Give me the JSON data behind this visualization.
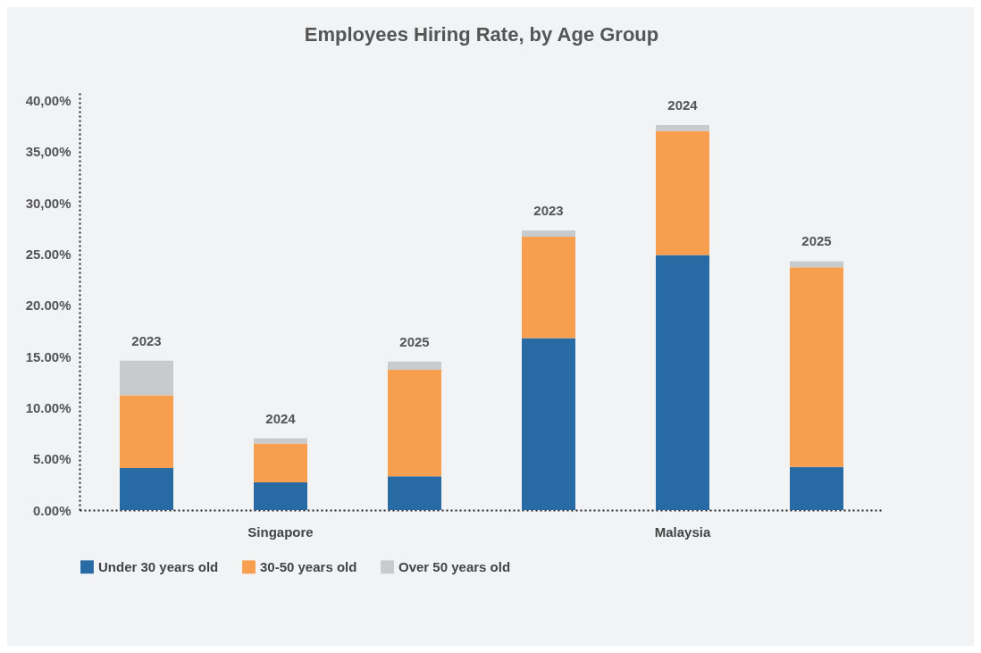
{
  "chart_data": {
    "type": "bar",
    "title": "Employees Hiring Rate, by Age Group",
    "stacked": true,
    "categories": [
      "2023",
      "2024",
      "2025",
      "2023",
      "2024",
      "2025"
    ],
    "series": [
      {
        "name": "Under 30 years old",
        "color": "#286aa3",
        "values": [
          4.1,
          2.7,
          3.3,
          16.8,
          24.9,
          4.2
        ]
      },
      {
        "name": "30-50 years old",
        "color": "#f79f4f",
        "values": [
          7.1,
          3.8,
          10.4,
          9.9,
          12.1,
          19.5
        ]
      },
      {
        "name": "Over 50 years old",
        "color": "#c9cacc",
        "values": [
          3.4,
          0.5,
          0.8,
          0.6,
          0.6,
          0.6
        ]
      }
    ],
    "ylim": [
      0,
      41
    ],
    "yticks": [
      {
        "value": 0,
        "label": "0.00%"
      },
      {
        "value": 5,
        "label": "5.00%"
      },
      {
        "value": 10,
        "label": "10.00%"
      },
      {
        "value": 15,
        "label": "15.00%"
      },
      {
        "value": 20,
        "label": "20.00%"
      },
      {
        "value": 25,
        "label": "25.00%"
      },
      {
        "value": 30,
        "label": "30,00%"
      },
      {
        "value": 35,
        "label": "35,00%"
      },
      {
        "value": 40,
        "label": "40,00%"
      }
    ],
    "annotations": [
      "Singapore",
      "Malaysia"
    ],
    "grid": false,
    "legend": "bottom"
  }
}
